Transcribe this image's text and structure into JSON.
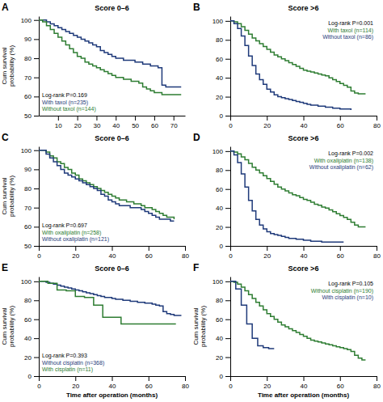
{
  "chart_data": [
    {
      "type": "step",
      "title": "Score 0–6",
      "annotations": [
        "A",
        "Log-rank P=0.169"
      ],
      "ylabel": "Cum survival\nprobability (%)",
      "xlim": [
        0,
        76
      ],
      "ylim": [
        50,
        102
      ],
      "xticks": [
        10,
        20,
        30,
        40,
        50,
        60,
        70
      ],
      "yticks": [
        50,
        60,
        70,
        80,
        90,
        100
      ],
      "legend": "lower left",
      "series": [
        {
          "name": "With taxol (n=235)",
          "color": "#1f3a7a",
          "x": [
            0,
            2,
            4,
            6,
            8,
            10,
            12,
            14,
            16,
            18,
            20,
            22,
            24,
            26,
            28,
            30,
            32,
            34,
            36,
            38,
            40,
            42,
            44,
            46,
            48,
            50,
            52,
            54,
            56,
            58,
            60,
            62,
            64,
            66,
            68,
            70,
            72,
            74
          ],
          "values": [
            100,
            100,
            99,
            98,
            97,
            96,
            95,
            94,
            93,
            92,
            91,
            90,
            89,
            88,
            87,
            86,
            84,
            83,
            82,
            81,
            80,
            80,
            79,
            79,
            79,
            78,
            78,
            77,
            77,
            76,
            76,
            75,
            66,
            65,
            65,
            65,
            65,
            65
          ]
        },
        {
          "name": "Without taxol (n=144)",
          "color": "#2e7d32",
          "x": [
            0,
            2,
            4,
            6,
            8,
            10,
            12,
            14,
            16,
            18,
            20,
            22,
            24,
            26,
            28,
            30,
            32,
            34,
            36,
            38,
            40,
            42,
            44,
            46,
            48,
            50,
            52,
            54,
            56,
            58,
            60,
            62,
            64,
            66,
            68,
            70,
            72,
            74
          ],
          "values": [
            100,
            99,
            97,
            95,
            93,
            91,
            89,
            87,
            85,
            83,
            81,
            80,
            78,
            77,
            76,
            75,
            74,
            73,
            72,
            71,
            70,
            70,
            69,
            69,
            68,
            68,
            67,
            65,
            64,
            63,
            62,
            62,
            61,
            61,
            61,
            61,
            61,
            61
          ]
        }
      ]
    },
    {
      "type": "step",
      "title": "Score >6",
      "annotations": [
        "B",
        "Log-rank P=0.001"
      ],
      "xlim": [
        0,
        80
      ],
      "ylim": [
        0,
        105
      ],
      "xticks": [
        0,
        20,
        40,
        60,
        80
      ],
      "yticks": [
        0,
        20,
        40,
        60,
        80,
        100
      ],
      "legend": "upper right",
      "series": [
        {
          "name": "With taxol (n=114)",
          "color": "#2e7d32",
          "x": [
            0,
            2,
            4,
            6,
            8,
            10,
            12,
            14,
            16,
            18,
            20,
            22,
            24,
            26,
            28,
            30,
            32,
            34,
            36,
            38,
            40,
            42,
            44,
            46,
            48,
            50,
            52,
            54,
            56,
            58,
            60,
            62,
            64,
            66,
            68,
            70,
            72,
            74
          ],
          "values": [
            100,
            99,
            97,
            94,
            90,
            86,
            82,
            79,
            76,
            73,
            70,
            67,
            64,
            62,
            60,
            58,
            56,
            54,
            52,
            50,
            48,
            47,
            46,
            45,
            44,
            43,
            42,
            40,
            38,
            36,
            34,
            32,
            30,
            26,
            24,
            23,
            23,
            23
          ]
        },
        {
          "name": "Without taxol (n=86)",
          "color": "#1f3a7a",
          "x": [
            0,
            2,
            4,
            6,
            8,
            10,
            12,
            14,
            16,
            18,
            20,
            22,
            24,
            26,
            28,
            30,
            32,
            34,
            36,
            38,
            40,
            42,
            44,
            46,
            48,
            50,
            52,
            54,
            56,
            58,
            60,
            62,
            64,
            66
          ],
          "values": [
            100,
            97,
            92,
            84,
            74,
            63,
            53,
            44,
            38,
            33,
            28,
            25,
            22,
            20,
            19,
            18,
            17,
            16,
            15,
            14,
            13,
            12,
            11,
            11,
            10,
            10,
            9,
            9,
            8,
            8,
            7,
            7,
            7,
            6
          ]
        }
      ]
    },
    {
      "type": "step",
      "title": "Score 0–6",
      "annotations": [
        "C",
        "Log-rank P=0.697"
      ],
      "ylabel": "Cum survival\nprobability (%)",
      "xlim": [
        0,
        80
      ],
      "ylim": [
        50,
        102
      ],
      "xticks": [
        0,
        20,
        40,
        60,
        80
      ],
      "yticks": [
        50,
        60,
        70,
        80,
        90,
        100
      ],
      "legend": "lower left",
      "series": [
        {
          "name": "With oxaliplatin (n=258)",
          "color": "#2e7d32",
          "x": [
            0,
            2,
            4,
            6,
            8,
            10,
            12,
            14,
            16,
            18,
            20,
            22,
            24,
            26,
            28,
            30,
            32,
            34,
            36,
            38,
            40,
            42,
            44,
            46,
            48,
            50,
            52,
            54,
            56,
            58,
            60,
            62,
            64,
            66,
            68,
            70,
            72,
            74
          ],
          "values": [
            100,
            100,
            99,
            97,
            96,
            94,
            93,
            91,
            90,
            88,
            87,
            85,
            84,
            83,
            82,
            81,
            80,
            79,
            78,
            77,
            76,
            75,
            74,
            74,
            73,
            73,
            72,
            72,
            71,
            70,
            70,
            69,
            68,
            67,
            66,
            65,
            65,
            64
          ]
        },
        {
          "name": "Without oxaliplatin (n=121)",
          "color": "#1f3a7a",
          "x": [
            0,
            2,
            4,
            6,
            8,
            10,
            12,
            14,
            16,
            18,
            20,
            22,
            24,
            26,
            28,
            30,
            32,
            34,
            36,
            38,
            40,
            42,
            44,
            46,
            48,
            50,
            52,
            54,
            56,
            58,
            60,
            62,
            64,
            66,
            68,
            70,
            72,
            74
          ],
          "values": [
            100,
            100,
            98,
            96,
            94,
            92,
            90,
            88,
            87,
            86,
            85,
            84,
            83,
            82,
            81,
            80,
            79,
            77,
            76,
            74,
            73,
            72,
            71,
            71,
            71,
            70,
            70,
            70,
            69,
            68,
            67,
            66,
            65,
            64,
            64,
            64,
            63,
            63
          ]
        }
      ]
    },
    {
      "type": "step",
      "title": "Score >6",
      "annotations": [
        "D",
        "Log-rank P=0.002"
      ],
      "xlim": [
        0,
        80
      ],
      "ylim": [
        0,
        105
      ],
      "xticks": [
        0,
        20,
        40,
        60,
        80
      ],
      "yticks": [
        0,
        20,
        40,
        60,
        80,
        100
      ],
      "legend": "upper right",
      "series": [
        {
          "name": "With oxaliplatin (n=138)",
          "color": "#2e7d32",
          "x": [
            0,
            2,
            4,
            6,
            8,
            10,
            12,
            14,
            16,
            18,
            20,
            22,
            24,
            26,
            28,
            30,
            32,
            34,
            36,
            38,
            40,
            42,
            44,
            46,
            48,
            50,
            52,
            54,
            56,
            58,
            60,
            62,
            64,
            66,
            68,
            70,
            72,
            74
          ],
          "values": [
            100,
            99,
            97,
            94,
            91,
            87,
            83,
            80,
            77,
            74,
            71,
            68,
            65,
            62,
            60,
            58,
            56,
            54,
            53,
            51,
            49,
            48,
            46,
            44,
            43,
            41,
            40,
            38,
            36,
            34,
            32,
            30,
            28,
            25,
            22,
            20,
            20,
            20
          ]
        },
        {
          "name": "Without oxaliplatin (n=62)",
          "color": "#1f3a7a",
          "x": [
            0,
            2,
            4,
            6,
            8,
            10,
            12,
            14,
            16,
            18,
            20,
            22,
            24,
            26,
            28,
            30,
            32,
            34,
            36,
            38,
            40,
            42,
            44,
            46,
            48,
            50,
            52,
            54,
            56,
            58,
            60,
            62
          ],
          "values": [
            100,
            96,
            88,
            76,
            62,
            48,
            37,
            28,
            22,
            18,
            15,
            13,
            12,
            11,
            10,
            9,
            8,
            8,
            7,
            7,
            6,
            6,
            5,
            5,
            5,
            4,
            4,
            4,
            4,
            4,
            4,
            4
          ]
        }
      ]
    },
    {
      "type": "step",
      "title": "Score 0–6",
      "annotations": [
        "E",
        "Log-rank P=0.393"
      ],
      "ylabel": "Cum survival\nprobability (%)",
      "xlabel": "Time after operation (months)",
      "xlim": [
        0,
        80
      ],
      "ylim": [
        0,
        105
      ],
      "xticks": [
        0,
        20,
        40,
        60,
        80
      ],
      "yticks": [
        0,
        20,
        40,
        60,
        80,
        100
      ],
      "legend": "lower left",
      "series": [
        {
          "name": "Without cisplatin (n=368)",
          "color": "#1f3a7a",
          "x": [
            0,
            2,
            4,
            6,
            8,
            10,
            12,
            14,
            16,
            18,
            20,
            22,
            24,
            26,
            28,
            30,
            32,
            34,
            36,
            38,
            40,
            42,
            44,
            46,
            48,
            50,
            52,
            54,
            56,
            58,
            60,
            62,
            64,
            66,
            68,
            70,
            72,
            74,
            76,
            78
          ],
          "values": [
            100,
            100,
            99,
            98,
            97,
            96,
            95,
            94,
            93,
            92,
            91,
            90,
            89,
            88,
            87,
            86,
            85,
            84,
            83,
            83,
            82,
            81,
            81,
            80,
            80,
            79,
            79,
            78,
            78,
            77,
            77,
            76,
            75,
            74,
            68,
            66,
            65,
            64,
            64,
            64
          ]
        },
        {
          "name": "With cisplatin (n=11)",
          "color": "#2e7d32",
          "x": [
            0,
            5,
            10,
            15,
            20,
            25,
            30,
            35,
            40,
            45,
            50,
            55,
            60,
            65,
            70,
            75
          ],
          "values": [
            100,
            98,
            91,
            90,
            84,
            83,
            75,
            62,
            62,
            55,
            55,
            55,
            55,
            55,
            55,
            55
          ]
        }
      ]
    },
    {
      "type": "step",
      "title": "Score >6",
      "annotations": [
        "F",
        "Log-rank P=0.105"
      ],
      "ylabel": "Cum survival\nprobability (%)",
      "xlabel": "Time after operation (months)",
      "xlim": [
        0,
        80
      ],
      "ylim": [
        0,
        105
      ],
      "xticks": [
        0,
        20,
        40,
        60,
        80
      ],
      "yticks": [
        0,
        20,
        40,
        60,
        80,
        100
      ],
      "legend": "upper right",
      "series": [
        {
          "name": "Without cisplatin (n=190)",
          "color": "#2e7d32",
          "x": [
            0,
            2,
            4,
            6,
            8,
            10,
            12,
            14,
            16,
            18,
            20,
            22,
            24,
            26,
            28,
            30,
            32,
            34,
            36,
            38,
            40,
            42,
            44,
            46,
            48,
            50,
            52,
            54,
            56,
            58,
            60,
            62,
            64,
            66,
            68,
            70,
            72,
            74
          ],
          "values": [
            100,
            99,
            97,
            94,
            90,
            86,
            82,
            78,
            74,
            70,
            66,
            63,
            60,
            57,
            54,
            52,
            50,
            48,
            46,
            44,
            42,
            40,
            38,
            37,
            36,
            35,
            34,
            33,
            32,
            31,
            30,
            29,
            28,
            26,
            22,
            19,
            17,
            17
          ]
        },
        {
          "name": "With cisplatin (n=10)",
          "color": "#1f3a7a",
          "x": [
            0,
            3,
            6,
            9,
            12,
            15,
            18,
            21,
            24
          ],
          "values": [
            100,
            92,
            75,
            55,
            40,
            32,
            30,
            29,
            29
          ]
        }
      ]
    }
  ]
}
